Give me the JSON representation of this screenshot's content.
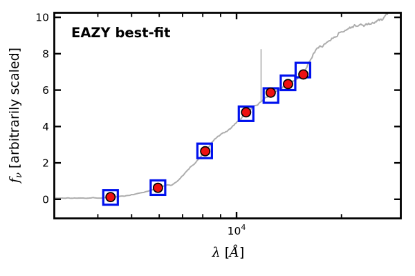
{
  "figure": {
    "background": "#ffffff",
    "frame_color": "#000000"
  },
  "chart_data": {
    "type": "line",
    "annotation": "EAZY best-fit",
    "annotation_color": "#ee0000",
    "xlabel": "λ [Å]",
    "ylabel": "f_ν [arbitrarily scaled]",
    "xlabel_parts": {
      "symbol": "λ",
      "open": " [",
      "unit": "Å",
      "close": "]"
    },
    "ylabel_parts": {
      "symbol": "f",
      "subscript": "ν",
      "rest": " [arbitrarily scaled]"
    },
    "x_scale": "log",
    "xlim": [
      3000,
      29600
    ],
    "ylim": [
      -1.05,
      10.25
    ],
    "grid": false,
    "x_major_ticks": [
      10000
    ],
    "x_major_tick_label": {
      "base": "10",
      "exponent": "4"
    },
    "x_minor_ticks": [
      4000,
      5000,
      6000,
      7000,
      8000,
      9000,
      20000
    ],
    "y_major_ticks": [
      0,
      2,
      4,
      6,
      8,
      10
    ],
    "series": [
      {
        "name": "EAZY best-fit model spectrum",
        "type": "line",
        "color": "#adadad",
        "line_width": 2,
        "points": [
          [
            3000,
            0.06
          ],
          [
            3400,
            0.07
          ],
          [
            3800,
            0.08
          ],
          [
            4100,
            0.09
          ],
          [
            4350,
            0.1
          ],
          [
            4600,
            0.14
          ],
          [
            4850,
            0.2
          ],
          [
            5100,
            0.28
          ],
          [
            5350,
            0.37
          ],
          [
            5600,
            0.46
          ],
          [
            5800,
            0.55
          ],
          [
            5950,
            0.63
          ],
          [
            6150,
            0.72
          ],
          [
            6350,
            0.8
          ],
          [
            6500,
            0.78
          ],
          [
            6650,
            0.9
          ],
          [
            6850,
            1.1
          ],
          [
            7050,
            1.35
          ],
          [
            7250,
            1.6
          ],
          [
            7450,
            1.85
          ],
          [
            7650,
            2.05
          ],
          [
            7850,
            2.3
          ],
          [
            8050,
            2.55
          ],
          [
            8250,
            2.8
          ],
          [
            8450,
            3.05
          ],
          [
            8650,
            3.3
          ],
          [
            8850,
            3.45
          ],
          [
            9050,
            3.55
          ],
          [
            9250,
            3.65
          ],
          [
            9450,
            3.75
          ],
          [
            9700,
            3.95
          ],
          [
            10000,
            4.2
          ],
          [
            10300,
            4.45
          ],
          [
            10650,
            4.7
          ],
          [
            11000,
            4.95
          ],
          [
            11350,
            5.18
          ],
          [
            11700,
            5.38
          ],
          [
            12000,
            5.55
          ],
          [
            12300,
            5.68
          ],
          [
            12600,
            5.8
          ],
          [
            13000,
            5.95
          ],
          [
            13400,
            6.1
          ],
          [
            13800,
            6.28
          ],
          [
            14200,
            6.42
          ],
          [
            14700,
            6.6
          ],
          [
            15200,
            6.78
          ],
          [
            15600,
            7.0
          ],
          [
            15900,
            7.25
          ],
          [
            16300,
            7.75
          ],
          [
            16700,
            8.1
          ],
          [
            17100,
            8.3
          ],
          [
            17600,
            8.45
          ],
          [
            18100,
            8.6
          ],
          [
            18800,
            8.85
          ],
          [
            19500,
            9.1
          ],
          [
            20200,
            9.28
          ],
          [
            21000,
            9.42
          ],
          [
            21800,
            9.52
          ],
          [
            22600,
            9.55
          ],
          [
            23500,
            9.58
          ],
          [
            24300,
            9.62
          ],
          [
            25200,
            9.72
          ],
          [
            26000,
            9.82
          ],
          [
            26700,
            9.95
          ],
          [
            27100,
            10.1
          ],
          [
            27500,
            10.45
          ]
        ]
      },
      {
        "name": "emission line spike",
        "type": "vline",
        "color": "#adadad",
        "line_width": 1.6,
        "lambda": 11760,
        "f_base": 5.42,
        "f_peak": 8.25
      },
      {
        "name": "model photometry",
        "type": "scatter",
        "marker": "open-square",
        "edge_color": "#0011ee",
        "marker_size": 21,
        "edge_width": 3.2,
        "points": [
          [
            4350,
            0.1
          ],
          [
            5950,
            0.64
          ],
          [
            8100,
            2.66
          ],
          [
            10650,
            4.7
          ],
          [
            12550,
            5.7
          ],
          [
            14050,
            6.4
          ],
          [
            15500,
            7.1
          ]
        ]
      },
      {
        "name": "observed photometry",
        "type": "scatter",
        "marker": "filled-circle",
        "fill_color": "#ee1111",
        "edge_color": "#000000",
        "marker_radius": 6.6,
        "edge_width": 1.7,
        "points": [
          [
            4350,
            0.12
          ],
          [
            5950,
            0.63
          ],
          [
            8130,
            2.64
          ],
          [
            10650,
            4.78
          ],
          [
            12530,
            5.86
          ],
          [
            14050,
            6.33
          ],
          [
            15550,
            6.86
          ]
        ]
      }
    ]
  }
}
